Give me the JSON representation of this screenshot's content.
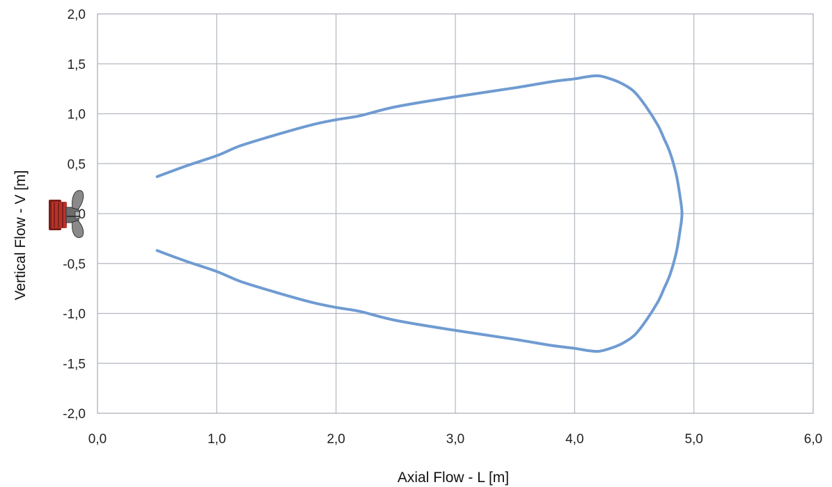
{
  "chart_data": {
    "type": "line",
    "title": "",
    "xlabel": "Axial Flow - L [m]",
    "ylabel": "Vertical Flow - V [m]",
    "xlim": [
      0,
      6
    ],
    "ylim": [
      -2,
      2
    ],
    "xticks": [
      "0,0",
      "1,0",
      "2,0",
      "3,0",
      "4,0",
      "5,0",
      "6,0"
    ],
    "yticks": [
      "2,0",
      "1,5",
      "1,0",
      "0,5",
      "0",
      "-0,5",
      "-1,0",
      "-1,5",
      "-2,0"
    ],
    "grid": true,
    "legend": "none",
    "series": [
      {
        "color": "#6f9bd1",
        "x": [
          0.5,
          0.75,
          1.0,
          1.2,
          1.5,
          1.8,
          2.0,
          2.2,
          2.5,
          3.0,
          3.5,
          3.8,
          4.0,
          4.1,
          4.2,
          4.3,
          4.4,
          4.5,
          4.6,
          4.7,
          4.75,
          4.8,
          4.85,
          4.88,
          4.9,
          4.88,
          4.85,
          4.8,
          4.75,
          4.7,
          4.6,
          4.5,
          4.4,
          4.3,
          4.2,
          4.1,
          4.0,
          3.8,
          3.5,
          3.0,
          2.5,
          2.2,
          2.0,
          1.8,
          1.5,
          1.2,
          1.0,
          0.75,
          0.5
        ],
        "y": [
          0.37,
          0.48,
          0.58,
          0.68,
          0.79,
          0.89,
          0.94,
          0.98,
          1.07,
          1.17,
          1.26,
          1.32,
          1.35,
          1.37,
          1.38,
          1.35,
          1.3,
          1.22,
          1.07,
          0.88,
          0.75,
          0.61,
          0.4,
          0.2,
          0.0,
          -0.2,
          -0.4,
          -0.61,
          -0.75,
          -0.88,
          -1.07,
          -1.22,
          -1.3,
          -1.35,
          -1.38,
          -1.37,
          -1.35,
          -1.32,
          -1.26,
          -1.17,
          -1.07,
          -0.98,
          -0.94,
          -0.89,
          -0.79,
          -0.68,
          -0.58,
          -0.48,
          -0.37
        ]
      }
    ]
  },
  "colors": {
    "grid": "#b3b8c0",
    "plot_border": "#a6abb3",
    "line": "#6f9bd1",
    "thruster_housing": "#b8322a",
    "thruster_blade": "#8a8a8a"
  },
  "icons": {
    "thruster": "bow-thruster-propeller-icon"
  }
}
